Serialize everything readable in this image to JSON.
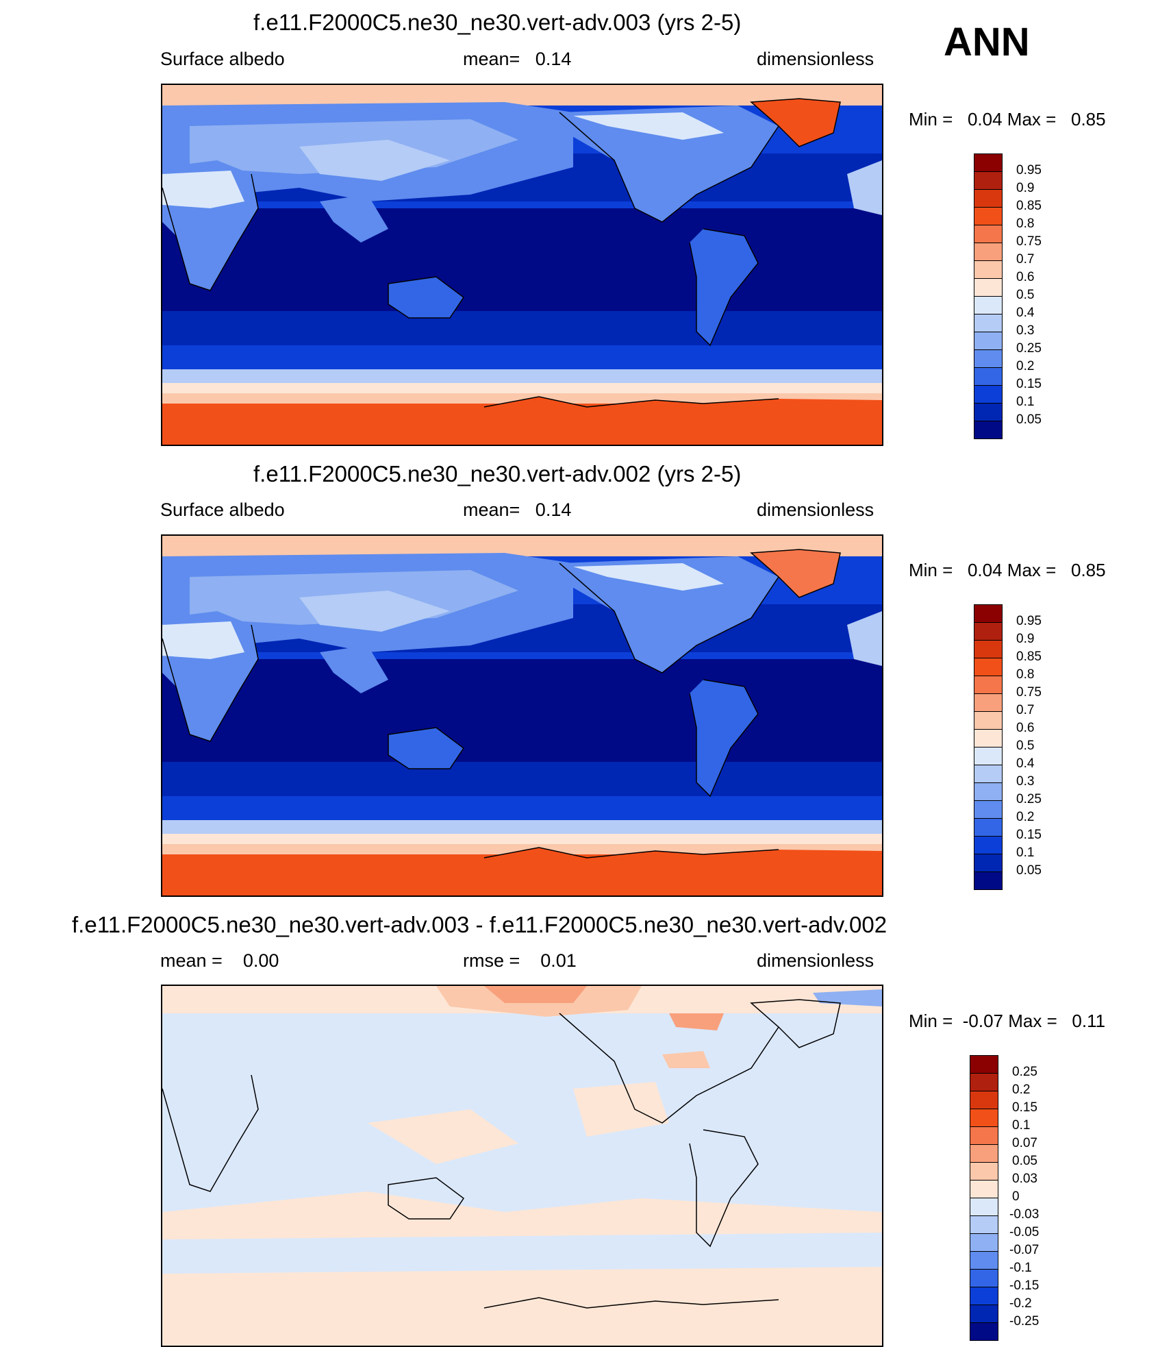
{
  "season": "ANN",
  "chart_data": [
    {
      "type": "heatmap",
      "title": "f.e11.F2000C5.ne30_ne30.vert-adv.003 (yrs 2-5)",
      "left_label": "Surface albedo",
      "center_label": "mean=   0.14",
      "right_label": "dimensionless",
      "min_max": "Min =   0.04 Max =   0.85",
      "levels": [
        "0.95",
        "0.9",
        "0.85",
        "0.8",
        "0.75",
        "0.7",
        "0.6",
        "0.5",
        "0.4",
        "0.3",
        "0.25",
        "0.2",
        "0.15",
        "0.1",
        "0.05"
      ],
      "colors": [
        "#8b0000",
        "#b0200e",
        "#d9380f",
        "#f25019",
        "#f5764a",
        "#f8a07c",
        "#fbc8ab",
        "#fde6d6",
        "#dbe8fa",
        "#b4ccf6",
        "#8fb0f2",
        "#5f8cee",
        "#3266e6",
        "#0c3fd8",
        "#0026b4",
        "#000a87"
      ]
    },
    {
      "type": "heatmap",
      "title": "f.e11.F2000C5.ne30_ne30.vert-adv.002 (yrs 2-5)",
      "left_label": "Surface albedo",
      "center_label": "mean=   0.14",
      "right_label": "dimensionless",
      "min_max": "Min =   0.04 Max =   0.85",
      "levels": [
        "0.95",
        "0.9",
        "0.85",
        "0.8",
        "0.75",
        "0.7",
        "0.6",
        "0.5",
        "0.4",
        "0.3",
        "0.25",
        "0.2",
        "0.15",
        "0.1",
        "0.05"
      ],
      "colors": [
        "#8b0000",
        "#b0200e",
        "#d9380f",
        "#f25019",
        "#f5764a",
        "#f8a07c",
        "#fbc8ab",
        "#fde6d6",
        "#dbe8fa",
        "#b4ccf6",
        "#8fb0f2",
        "#5f8cee",
        "#3266e6",
        "#0c3fd8",
        "#0026b4",
        "#000a87"
      ]
    },
    {
      "type": "heatmap",
      "title": "f.e11.F2000C5.ne30_ne30.vert-adv.003 - f.e11.F2000C5.ne30_ne30.vert-adv.002",
      "left_label": "mean =    0.00",
      "center_label": "rmse =    0.01",
      "right_label": "dimensionless",
      "min_max": "Min =  -0.07 Max =   0.11",
      "levels": [
        "0.25",
        "0.2",
        "0.15",
        "0.1",
        "0.07",
        "0.05",
        "0.03",
        "0",
        "-0.03",
        "-0.05",
        "-0.07",
        "-0.1",
        "-0.15",
        "-0.2",
        "-0.25"
      ],
      "colors": [
        "#8b0000",
        "#b0200e",
        "#d9380f",
        "#f25019",
        "#f5764a",
        "#f8a07c",
        "#fbc8ab",
        "#fde6d6",
        "#dbe8fa",
        "#b4ccf6",
        "#8fb0f2",
        "#5f8cee",
        "#3266e6",
        "#0c3fd8",
        "#0026b4",
        "#000a87"
      ]
    }
  ]
}
